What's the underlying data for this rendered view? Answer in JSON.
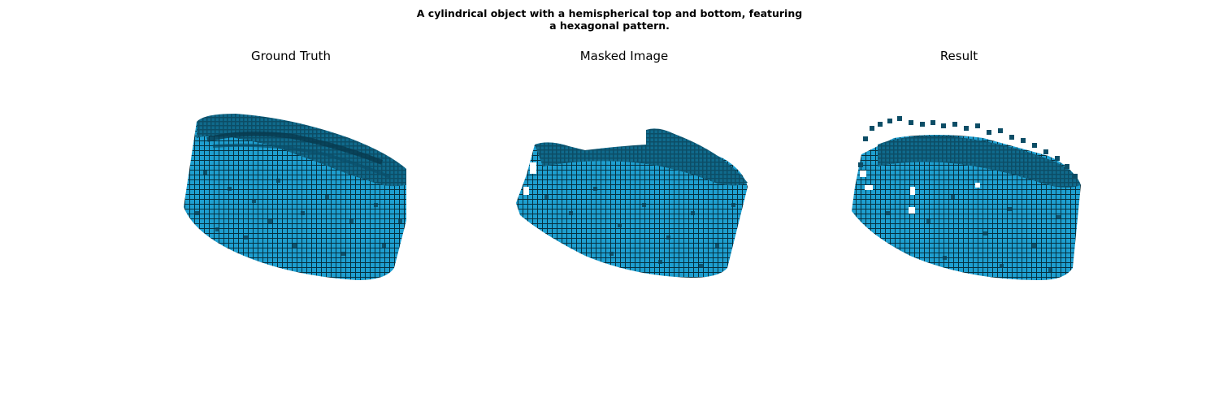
{
  "figure": {
    "title_line_1": "A cylindrical object with a hemispherical top and bottom, featuring",
    "title_line_2": "a hexagonal pattern.",
    "panels": [
      {
        "title": "Ground Truth"
      },
      {
        "title": "Masked Image"
      },
      {
        "title": "Result"
      }
    ],
    "colors": {
      "voxel_face": "#1391c2",
      "voxel_light": "#29b2e4",
      "voxel_dark": "#0b4a63",
      "voxel_edge": "#06303f"
    }
  }
}
